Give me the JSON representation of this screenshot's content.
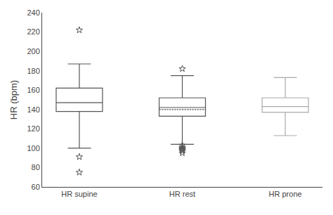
{
  "chart_data": {
    "type": "box",
    "ylabel": "HR (bpm)",
    "categories": [
      "HR supine",
      "HR rest",
      "HR prone"
    ],
    "boxes": [
      {
        "median": 147,
        "q1": 138,
        "q3": 162,
        "whislo": 100,
        "whishi": 187,
        "fliers_high": [
          222
        ],
        "fliers_low": [
          91,
          75
        ]
      },
      {
        "median": 142,
        "q1": 133,
        "q3": 152,
        "whislo": 104,
        "whishi": 175,
        "fliers_high": [
          182
        ],
        "fliers_low": [
          97,
          95,
          99,
          101,
          100,
          103,
          98
        ],
        "mean": 140
      },
      {
        "median": 143,
        "q1": 137,
        "q3": 152,
        "whislo": 113,
        "whishi": 173,
        "fliers_high": [],
        "fliers_low": []
      }
    ],
    "colors": [
      "#555555",
      "#555555",
      "#aaaaaa"
    ],
    "marker": "star",
    "ylim": [
      60,
      240
    ],
    "yticks": [
      60,
      80,
      100,
      120,
      140,
      160,
      180,
      200,
      220,
      240
    ],
    "grid": false
  }
}
